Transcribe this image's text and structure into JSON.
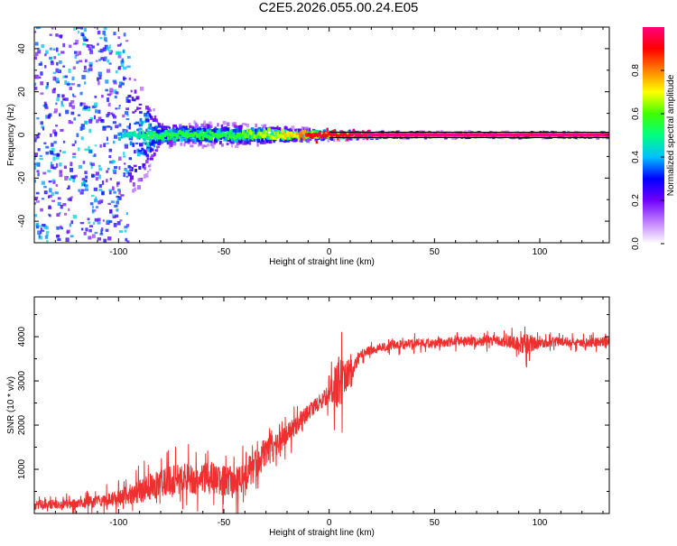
{
  "figure": {
    "title": "C2E5.2026.055.00.24.E05"
  },
  "chart_data": [
    {
      "type": "heatmap",
      "title": "C2E5.2026.055.00.24.E05",
      "xlabel": "Height of straight line (km)",
      "ylabel": "Frequency (Hz)",
      "xlim": [
        -140,
        133
      ],
      "ylim": [
        -50,
        50
      ],
      "x_ticks": [
        -100,
        -50,
        0,
        50,
        100
      ],
      "x_tick_labels": [
        "-100",
        "-50",
        "0",
        "50",
        "100"
      ],
      "y_ticks": [
        -40,
        -20,
        0,
        20,
        40
      ],
      "y_tick_labels": [
        "-40",
        "-20",
        "0",
        "20",
        "40"
      ],
      "colorbar": {
        "label": "Normalized spectral amplitude",
        "range": [
          0,
          1
        ],
        "ticks": [
          0,
          0.2,
          0.4,
          0.6,
          0.8
        ],
        "tick_labels": [
          "0.0",
          "0.2",
          "0.4",
          "0.6",
          "0.8"
        ],
        "colormap": [
          "#ffffff",
          "#c080ff",
          "#7000ff",
          "#0000ff",
          "#00c0ff",
          "#00ff80",
          "#40ff00",
          "#ffff00",
          "#ff8000",
          "#ff0000",
          "#ff0080"
        ]
      },
      "description_profile": {
        "height_km": [
          -140,
          -100,
          -80,
          -50,
          -30,
          -15,
          -5,
          5,
          15,
          30,
          133
        ],
        "spread_hz": [
          50,
          45,
          5,
          5,
          4,
          3,
          2,
          2,
          1.5,
          1,
          1
        ],
        "center_amplitude": [
          0.25,
          0.35,
          0.5,
          0.5,
          0.6,
          0.7,
          0.9,
          0.85,
          0.95,
          1.0,
          1.0
        ]
      }
    },
    {
      "type": "line",
      "xlabel": "Height of straight line (km)",
      "ylabel": "SNR (10 * v/v)",
      "xlim": [
        -140,
        133
      ],
      "ylim": [
        0,
        4900
      ],
      "x_ticks": [
        -100,
        -50,
        0,
        50,
        100
      ],
      "x_tick_labels": [
        "-100",
        "-50",
        "0",
        "50",
        "100"
      ],
      "y_ticks": [
        1000,
        2000,
        3000,
        4000
      ],
      "y_tick_labels": [
        "1000",
        "2000",
        "3000",
        "4000"
      ],
      "series": [
        {
          "name": "SNR",
          "color": "#f03030",
          "x": [
            -140,
            -120,
            -100,
            -90,
            -80,
            -70,
            -60,
            -50,
            -45,
            -40,
            -35,
            -30,
            -25,
            -20,
            -15,
            -10,
            -5,
            0,
            3,
            5,
            8,
            10,
            15,
            20,
            25,
            30,
            40,
            50,
            60,
            70,
            80,
            90,
            95,
            100,
            110,
            120,
            133
          ],
          "y": [
            200,
            220,
            350,
            500,
            700,
            800,
            800,
            750,
            700,
            800,
            1100,
            1400,
            1600,
            1800,
            2000,
            2300,
            2500,
            2700,
            2900,
            3000,
            3100,
            3200,
            3600,
            3700,
            3750,
            3800,
            3850,
            3850,
            3900,
            3900,
            3900,
            3850,
            3800,
            3850,
            3900,
            3850,
            3900
          ],
          "noise": [
            150,
            150,
            250,
            400,
            450,
            500,
            500,
            500,
            500,
            600,
            500,
            450,
            400,
            350,
            300,
            250,
            250,
            300,
            700,
            900,
            600,
            400,
            150,
            150,
            150,
            150,
            150,
            150,
            150,
            150,
            150,
            250,
            400,
            150,
            150,
            150,
            150
          ]
        }
      ]
    }
  ]
}
